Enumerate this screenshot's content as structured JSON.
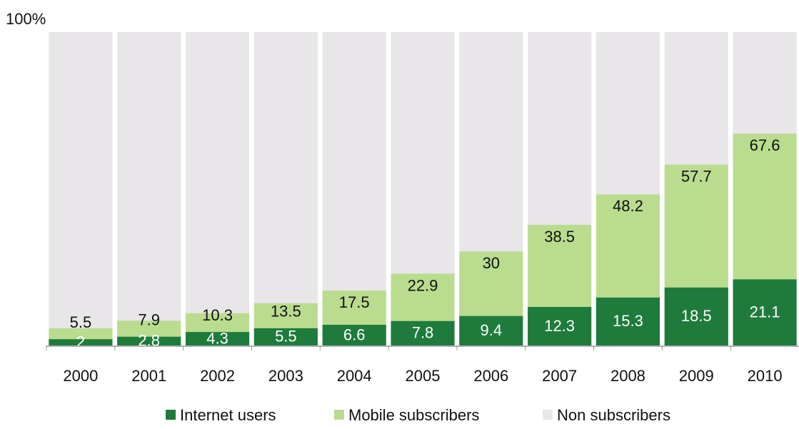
{
  "chart_data": {
    "type": "bar",
    "barmode": "overlay",
    "categories": [
      "2000",
      "2001",
      "2002",
      "2003",
      "2004",
      "2005",
      "2006",
      "2007",
      "2008",
      "2009",
      "2010"
    ],
    "series": [
      {
        "name": "Internet users",
        "color": "#1e7b3c",
        "values": [
          2,
          2.8,
          4.3,
          5.5,
          6.6,
          7.8,
          9.4,
          12.3,
          15.3,
          18.5,
          21.1
        ]
      },
      {
        "name": "Mobile subscribers",
        "color": "#b9dc8f",
        "values": [
          5.5,
          7.9,
          10.3,
          13.5,
          17.5,
          22.9,
          30,
          38.5,
          48.2,
          57.7,
          67.6
        ]
      },
      {
        "name": "Non subscribers",
        "color": "#e8e6e8",
        "values": [
          100,
          100,
          100,
          100,
          100,
          100,
          100,
          100,
          100,
          100,
          100
        ]
      }
    ],
    "ylim": [
      0,
      100
    ],
    "yticks": [
      {
        "value": 100,
        "label": "100%"
      }
    ],
    "grid": false,
    "legend": "bottom"
  }
}
